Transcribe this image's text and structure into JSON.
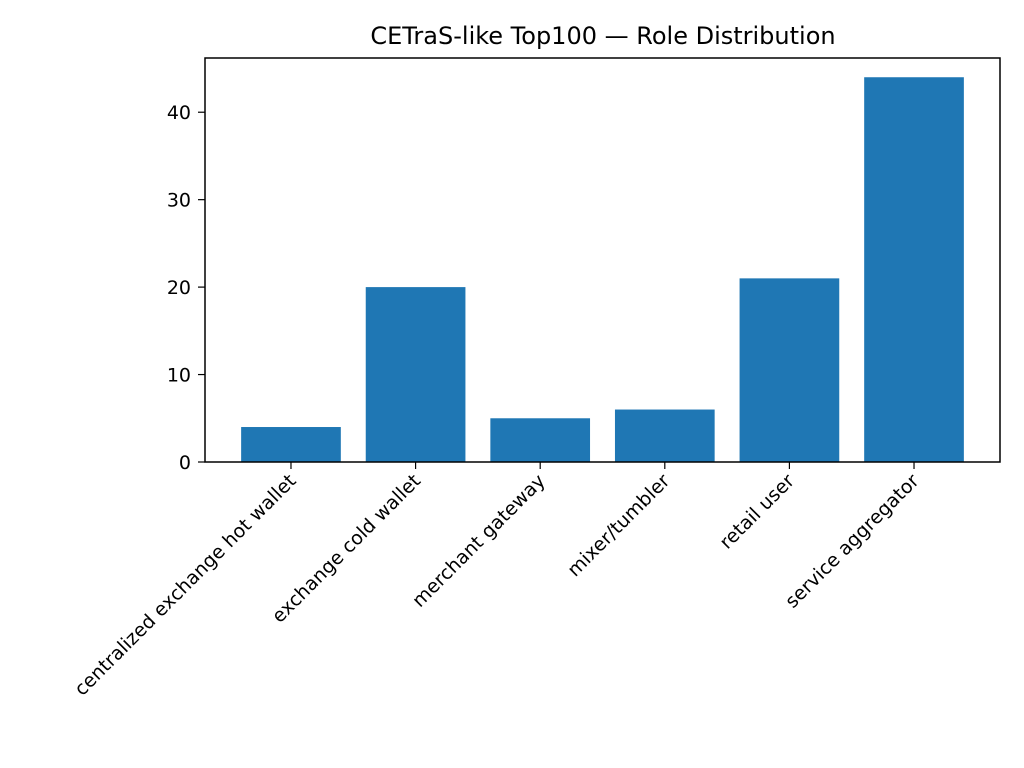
{
  "chart_data": {
    "type": "bar",
    "title": "CETraS-like Top100 — Role Distribution",
    "xlabel": "",
    "ylabel": "",
    "categories": [
      "centralized exchange hot wallet",
      "exchange cold wallet",
      "merchant gateway",
      "mixer/tumbler",
      "retail user",
      "service aggregator"
    ],
    "values": [
      4,
      20,
      5,
      6,
      21,
      44
    ],
    "ylim": [
      0,
      46.2
    ],
    "yticks": [
      0,
      10,
      20,
      30,
      40
    ],
    "grid": false,
    "bar_color": "#1f77b4",
    "x_tick_rotation_degrees": 45
  }
}
